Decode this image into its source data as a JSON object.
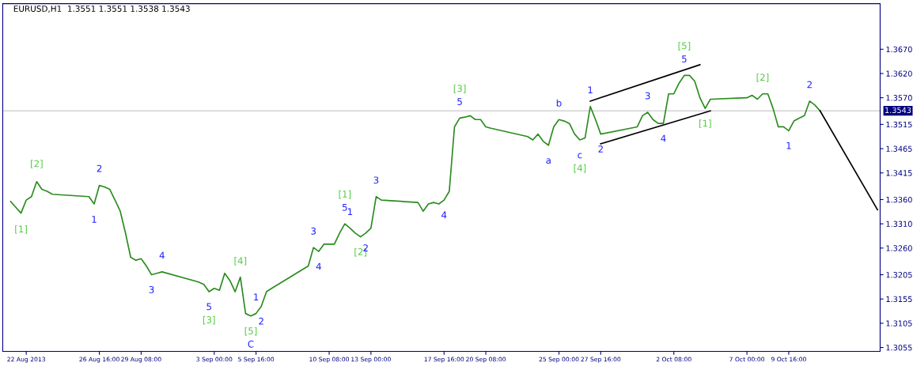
{
  "chart_data": {
    "type": "line",
    "title": "EURUSD,H1  1.3551 1.3551 1.3538 1.3543",
    "xlim": [
      "2013-08-20T12:00",
      "2013-10-15T12:00"
    ],
    "ylim": [
      1.3047,
      1.3764
    ],
    "xticks": [
      {
        "value": "2013-08-22T00:00",
        "label": "22 Aug 2013"
      },
      {
        "value": "2013-08-26T16:00",
        "label": "26 Aug 16:00"
      },
      {
        "value": "2013-08-29T08:00",
        "label": "29 Aug 08:00"
      },
      {
        "value": "2013-09-03T00:00",
        "label": "3 Sep 00:00"
      },
      {
        "value": "2013-09-05T16:00",
        "label": "5 Sep 16:00"
      },
      {
        "value": "2013-09-10T08:00",
        "label": "10 Sep 08:00"
      },
      {
        "value": "2013-09-13T00:00",
        "label": "13 Sep 00:00"
      },
      {
        "value": "2013-09-17T16:00",
        "label": "17 Sep 16:00"
      },
      {
        "value": "2013-09-20T08:00",
        "label": "20 Sep 08:00"
      },
      {
        "value": "2013-09-25T00:00",
        "label": "25 Sep 00:00"
      },
      {
        "value": "2013-09-27T16:00",
        "label": "27 Sep 16:00"
      },
      {
        "value": "2013-10-02T08:00",
        "label": "2 Oct 08:00"
      },
      {
        "value": "2013-10-07T00:00",
        "label": "7 Oct 00:00"
      },
      {
        "value": "2013-10-09T16:00",
        "label": "9 Oct 16:00"
      }
    ],
    "yticks": [
      {
        "value": 1.3055,
        "label": "1.3055"
      },
      {
        "value": 1.3105,
        "label": "1.3105"
      },
      {
        "value": 1.3155,
        "label": "1.3155"
      },
      {
        "value": 1.3205,
        "label": "1.3205"
      },
      {
        "value": 1.326,
        "label": "1.3260"
      },
      {
        "value": 1.331,
        "label": "1.3310"
      },
      {
        "value": 1.336,
        "label": "1.3360"
      },
      {
        "value": 1.3415,
        "label": "1.3415"
      },
      {
        "value": 1.3465,
        "label": "1.3465"
      },
      {
        "value": 1.3515,
        "label": "1.3515"
      },
      {
        "value": 1.357,
        "label": "1.3570"
      },
      {
        "value": 1.362,
        "label": "1.3620"
      },
      {
        "value": 1.367,
        "label": "1.3670"
      }
    ],
    "grid": false,
    "marker": "none",
    "line_style": "solid",
    "series": [
      {
        "color": "#2a8c1e",
        "x": [
          "2013-08-21T00:00",
          "2013-08-21T08:00",
          "2013-08-21T16:00",
          "2013-08-22T00:00",
          "2013-08-22T08:00",
          "2013-08-22T16:00",
          "2013-08-23T00:00",
          "2013-08-23T08:00",
          "2013-08-23T16:00",
          "2013-08-26T00:00",
          "2013-08-26T08:00",
          "2013-08-26T16:00",
          "2013-08-27T00:00",
          "2013-08-27T08:00",
          "2013-08-27T16:00",
          "2013-08-28T00:00",
          "2013-08-28T08:00",
          "2013-08-28T16:00",
          "2013-08-29T00:00",
          "2013-08-29T08:00",
          "2013-08-29T16:00",
          "2013-08-30T00:00",
          "2013-08-30T08:00",
          "2013-08-30T16:00",
          "2013-09-02T00:00",
          "2013-09-02T08:00",
          "2013-09-02T16:00",
          "2013-09-03T00:00",
          "2013-09-03T08:00",
          "2013-09-03T16:00",
          "2013-09-04T00:00",
          "2013-09-04T08:00",
          "2013-09-04T16:00",
          "2013-09-05T00:00",
          "2013-09-05T08:00",
          "2013-09-05T16:00",
          "2013-09-06T00:00",
          "2013-09-06T08:00",
          "2013-09-06T16:00",
          "2013-09-09T00:00",
          "2013-09-09T08:00",
          "2013-09-09T16:00",
          "2013-09-10T00:00",
          "2013-09-10T08:00",
          "2013-09-10T16:00",
          "2013-09-11T00:00",
          "2013-09-11T08:00",
          "2013-09-11T16:00",
          "2013-09-12T00:00",
          "2013-09-12T08:00",
          "2013-09-12T16:00",
          "2013-09-13T00:00",
          "2013-09-13T08:00",
          "2013-09-13T16:00",
          "2013-09-16T00:00",
          "2013-09-16T08:00",
          "2013-09-16T16:00",
          "2013-09-17T00:00",
          "2013-09-17T08:00",
          "2013-09-17T16:00",
          "2013-09-18T00:00",
          "2013-09-18T08:00",
          "2013-09-18T16:00",
          "2013-09-19T00:00",
          "2013-09-19T08:00",
          "2013-09-19T16:00",
          "2013-09-20T00:00",
          "2013-09-20T08:00",
          "2013-09-20T16:00",
          "2013-09-23T00:00",
          "2013-09-23T08:00",
          "2013-09-23T16:00",
          "2013-09-24T00:00",
          "2013-09-24T08:00",
          "2013-09-24T16:00",
          "2013-09-25T00:00",
          "2013-09-25T08:00",
          "2013-09-25T16:00",
          "2013-09-26T00:00",
          "2013-09-26T08:00",
          "2013-09-26T16:00",
          "2013-09-27T00:00",
          "2013-09-27T08:00",
          "2013-09-27T16:00",
          "2013-09-30T00:00",
          "2013-09-30T08:00",
          "2013-09-30T16:00",
          "2013-10-01T00:00",
          "2013-10-01T08:00",
          "2013-10-01T16:00",
          "2013-10-02T00:00",
          "2013-10-02T08:00",
          "2013-10-02T16:00",
          "2013-10-03T00:00",
          "2013-10-03T08:00",
          "2013-10-03T16:00",
          "2013-10-04T00:00",
          "2013-10-04T08:00",
          "2013-10-04T16:00",
          "2013-10-07T00:00",
          "2013-10-07T08:00",
          "2013-10-07T16:00",
          "2013-10-08T00:00",
          "2013-10-08T08:00",
          "2013-10-08T16:00",
          "2013-10-09T00:00",
          "2013-10-09T08:00",
          "2013-10-09T16:00",
          "2013-10-10T00:00",
          "2013-10-10T08:00",
          "2013-10-10T16:00",
          "2013-10-11T00:00",
          "2013-10-11T08:00",
          "2013-10-11T16:00"
        ],
        "values": [
          1.3356,
          1.3344,
          1.3332,
          1.3359,
          1.3366,
          1.3397,
          1.3381,
          1.3377,
          1.3371,
          1.3366,
          1.3351,
          1.3389,
          1.3386,
          1.3381,
          1.3359,
          1.3336,
          1.3291,
          1.3241,
          1.3235,
          1.3238,
          1.3223,
          1.3205,
          1.3208,
          1.3211,
          1.319,
          1.3185,
          1.317,
          1.3177,
          1.3173,
          1.3208,
          1.3193,
          1.317,
          1.32,
          1.3125,
          1.312,
          1.3125,
          1.314,
          1.317,
          1.3177,
          1.3223,
          1.3261,
          1.3253,
          1.3268,
          1.3268,
          1.3268,
          1.3291,
          1.331,
          1.3301,
          1.3291,
          1.3283,
          1.3291,
          1.3301,
          1.3366,
          1.3359,
          1.3354,
          1.3336,
          1.3351,
          1.3354,
          1.3351,
          1.3359,
          1.3377,
          1.351,
          1.3528,
          1.353,
          1.3533,
          1.3525,
          1.3525,
          1.351,
          1.3507,
          1.349,
          1.3483,
          1.3495,
          1.348,
          1.3472,
          1.351,
          1.3525,
          1.3522,
          1.3517,
          1.3495,
          1.3483,
          1.3487,
          1.3552,
          1.3525,
          1.3495,
          1.351,
          1.3533,
          1.354,
          1.3525,
          1.3517,
          1.3517,
          1.3578,
          1.3578,
          1.36,
          1.3616,
          1.3616,
          1.3604,
          1.357,
          1.3548,
          1.3567,
          1.357,
          1.3575,
          1.3567,
          1.3578,
          1.3578,
          1.3548,
          1.351,
          1.351,
          1.3502,
          1.3522,
          1.3528,
          1.3533,
          1.3563,
          1.3555,
          1.3543
        ]
      },
      {
        "color": "#000000",
        "x": [
          "2013-10-11T16:00",
          "2013-10-15T08:00"
        ],
        "values": [
          1.3543,
          1.3339
        ]
      },
      {
        "color": "#000000",
        "x": [
          "2013-09-27T00:00",
          "2013-10-04T00:00"
        ],
        "values": [
          1.3563,
          1.3638
        ]
      },
      {
        "color": "#000000",
        "x": [
          "2013-09-27T16:00",
          "2013-10-04T16:00"
        ],
        "values": [
          1.3475,
          1.3543
        ]
      }
    ],
    "ref_lines": [
      {
        "axis": "y",
        "value": 1.3543,
        "label": "1.3543",
        "color": "#d3d3d3"
      }
    ],
    "annotations": [
      {
        "text": "[1]",
        "x": "2013-08-21T16:00",
        "y": 1.3325
      },
      {
        "text": "[2]",
        "x": "2013-08-22T16:00",
        "y": 1.3405
      },
      {
        "text": "1",
        "x": "2013-08-26T08:00",
        "y": 1.3345
      },
      {
        "text": "2",
        "x": "2013-08-26T16:00",
        "y": 1.3395
      },
      {
        "text": "3",
        "x": "2013-08-30T00:00",
        "y": 1.32
      },
      {
        "text": "4",
        "x": "2013-08-30T16:00",
        "y": 1.3216
      },
      {
        "text": "5",
        "x": "2013-09-02T16:00",
        "y": 1.3165
      },
      {
        "text": "[3]",
        "x": "2013-09-02T16:00",
        "y": 1.3165
      },
      {
        "text": "[4]",
        "x": "2013-09-04T16:00",
        "y": 1.3205
      },
      {
        "text": "[5]",
        "x": "2013-09-05T08:00",
        "y": 1.3115
      },
      {
        "text": "C",
        "x": "2013-09-05T08:00",
        "y": 1.3115
      },
      {
        "text": "1",
        "x": "2013-09-05T16:00",
        "y": 1.313
      },
      {
        "text": "2",
        "x": "2013-09-06T00:00",
        "y": 1.3135
      },
      {
        "text": "3",
        "x": "2013-09-09T08:00",
        "y": 1.3266
      },
      {
        "text": "4",
        "x": "2013-09-09T16:00",
        "y": 1.3248
      },
      {
        "text": "5",
        "x": "2013-09-11T08:00",
        "y": 1.3315
      },
      {
        "text": "[1]",
        "x": "2013-09-11T08:00",
        "y": 1.3315
      },
      {
        "text": "1",
        "x": "2013-09-11T16:00",
        "y": 1.3306
      },
      {
        "text": "[2]",
        "x": "2013-09-12T08:00",
        "y": 1.3278
      },
      {
        "text": "2",
        "x": "2013-09-12T16:00",
        "y": 1.3286
      },
      {
        "text": "3",
        "x": "2013-09-13T08:00",
        "y": 1.3371
      },
      {
        "text": "4",
        "x": "2013-09-17T16:00",
        "y": 1.3354
      },
      {
        "text": "5",
        "x": "2013-09-18T16:00",
        "y": 1.3533
      },
      {
        "text": "[3]",
        "x": "2013-09-18T16:00",
        "y": 1.3533
      },
      {
        "text": "a",
        "x": "2013-09-24T08:00",
        "y": 1.3467
      },
      {
        "text": "b",
        "x": "2013-09-25T00:00",
        "y": 1.353
      },
      {
        "text": "c",
        "x": "2013-09-26T08:00",
        "y": 1.3478
      },
      {
        "text": "[4]",
        "x": "2013-09-26T08:00",
        "y": 1.3478
      },
      {
        "text": "1",
        "x": "2013-09-27T00:00",
        "y": 1.3557
      },
      {
        "text": "2",
        "x": "2013-09-27T16:00",
        "y": 1.349
      },
      {
        "text": "3",
        "x": "2013-09-30T16:00",
        "y": 1.3545
      },
      {
        "text": "4",
        "x": "2013-10-01T16:00",
        "y": 1.3512
      },
      {
        "text": "5",
        "x": "2013-10-03T00:00",
        "y": 1.3621
      },
      {
        "text": "[5]",
        "x": "2013-10-03T00:00",
        "y": 1.3621
      },
      {
        "text": "[1]",
        "x": "2013-10-04T08:00",
        "y": 1.3543
      },
      {
        "text": "[2]",
        "x": "2013-10-08T00:00",
        "y": 1.3583
      },
      {
        "text": "1",
        "x": "2013-10-09T16:00",
        "y": 1.3497
      },
      {
        "text": "2",
        "x": "2013-10-11T00:00",
        "y": 1.3568
      }
    ]
  }
}
